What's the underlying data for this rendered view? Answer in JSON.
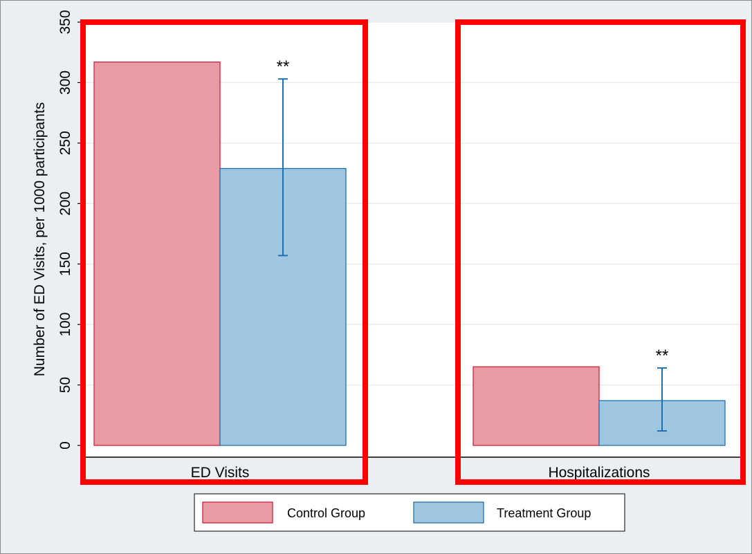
{
  "chart_data": {
    "type": "bar",
    "categories": [
      "ED Visits",
      "Hospitalizations"
    ],
    "series": [
      {
        "name": "Control Group",
        "values": [
          317,
          65
        ],
        "color": "#e99ba5",
        "stroke": "#d41e3c"
      },
      {
        "name": "Treatment Group",
        "values": [
          229,
          37
        ],
        "color": "#9fc6e0",
        "stroke": "#1f6fae",
        "error_low": [
          157,
          12
        ],
        "error_high": [
          303,
          64
        ],
        "annotations": [
          "**",
          "**"
        ]
      }
    ],
    "ylabel": "Number of ED Visits, per 1000 participants",
    "yticks": [
      0,
      50,
      100,
      150,
      200,
      250,
      300,
      350
    ],
    "ylim": [
      0,
      350
    ],
    "grid": true,
    "legend": "bottom",
    "highlight_color": "#ff0000"
  }
}
